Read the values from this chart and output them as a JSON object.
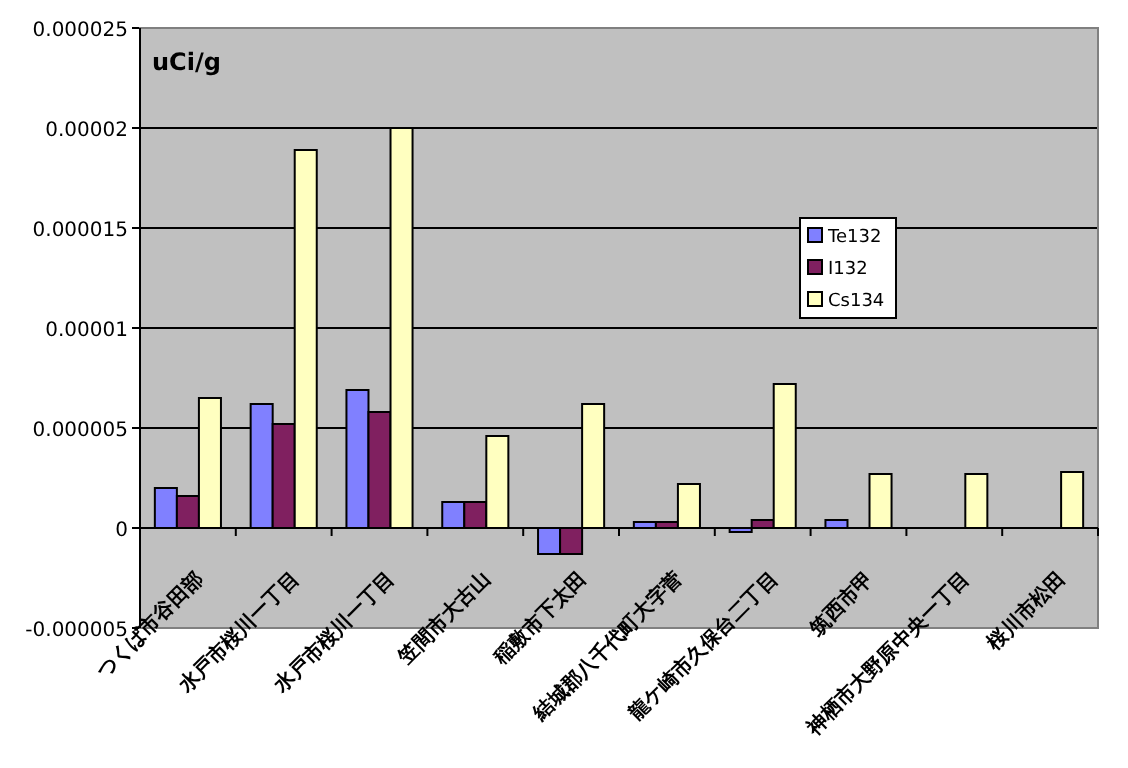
{
  "chart_data": {
    "type": "bar",
    "ylabel": "uCi/g",
    "categories": [
      "つくば市谷田部",
      "水戸市桜川一丁目",
      "水戸市桜川一丁目",
      "笠間市大古山",
      "稲敷市下太田",
      "結城郡八千代町大字菅",
      "龍ケ崎市久保台二丁目",
      "筑西市甲",
      "神栖市大野原中央一丁目",
      "桜川市松田"
    ],
    "series": [
      {
        "name": "Te132",
        "color": "#8080ff",
        "values": [
          2e-06,
          6.2e-06,
          6.9e-06,
          1.3e-06,
          -1.3e-06,
          3e-07,
          -2e-07,
          4e-07,
          null,
          null
        ]
      },
      {
        "name": "I132",
        "color": "#802060",
        "values": [
          1.6e-06,
          5.2e-06,
          5.8e-06,
          1.3e-06,
          -1.3e-06,
          3e-07,
          4e-07,
          null,
          null,
          null
        ]
      },
      {
        "name": "Cs134",
        "color": "#ffffc0",
        "values": [
          6.5e-06,
          1.89e-05,
          2e-05,
          4.6e-06,
          6.2e-06,
          2.2e-06,
          7.2e-06,
          2.7e-06,
          2.7e-06,
          2.8e-06
        ]
      }
    ],
    "ylim": [
      -5e-06,
      2.5e-05
    ],
    "yticks": [
      {
        "value": -5e-06,
        "label": "-0.000005"
      },
      0,
      {
        "value": 5e-06,
        "label": "0.000005"
      },
      {
        "value": 1e-05,
        "label": "0.00001"
      },
      {
        "value": 1.5e-05,
        "label": "0.000015"
      },
      {
        "value": 2e-05,
        "label": "0.00002"
      },
      {
        "value": 2.5e-05,
        "label": "0.000025"
      }
    ],
    "grid": "y",
    "legend": "right"
  }
}
